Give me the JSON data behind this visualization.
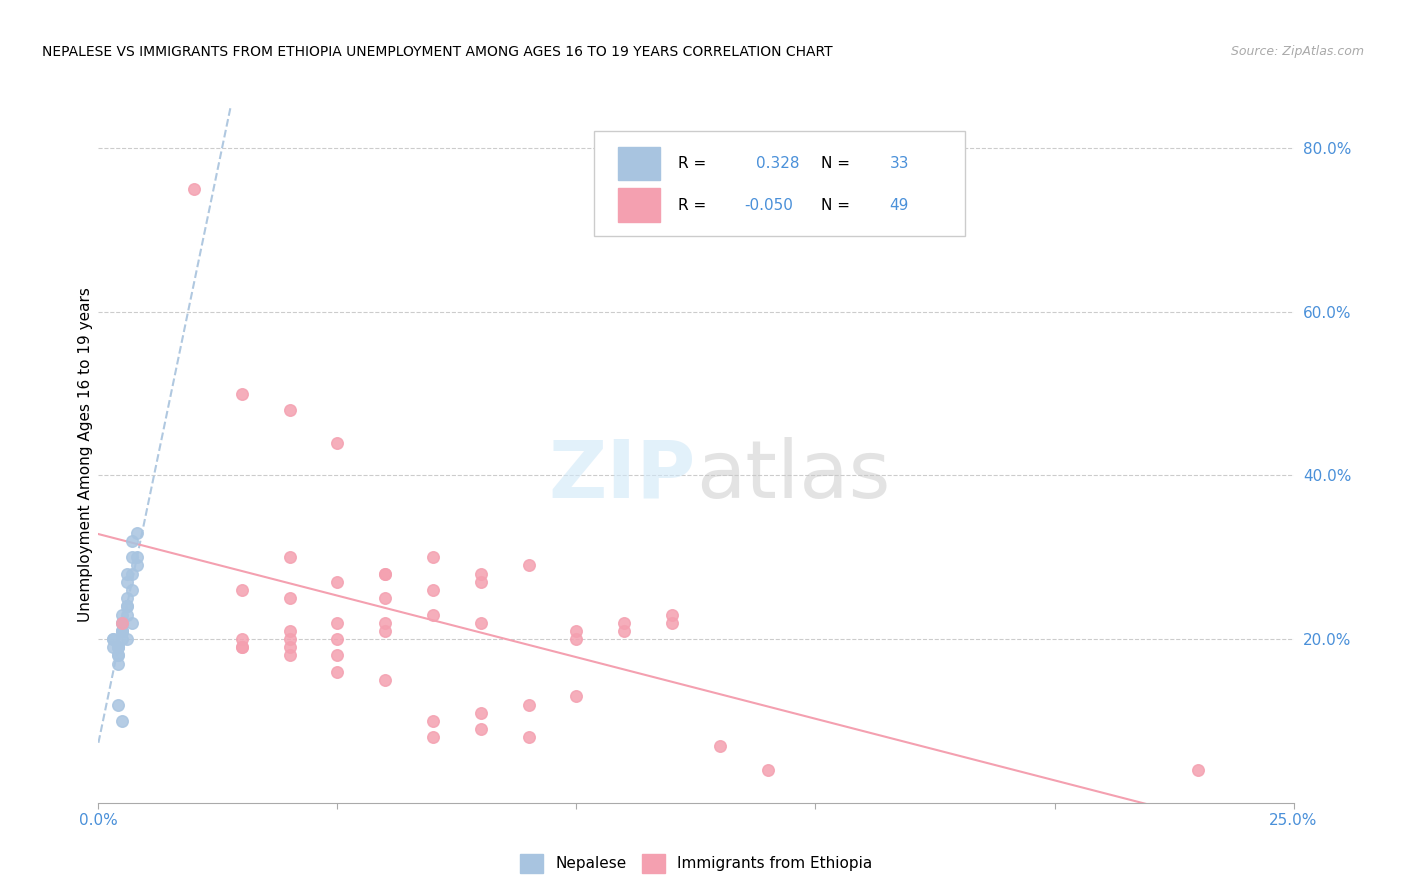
{
  "title": "NEPALESE VS IMMIGRANTS FROM ETHIOPIA UNEMPLOYMENT AMONG AGES 16 TO 19 YEARS CORRELATION CHART",
  "source": "Source: ZipAtlas.com",
  "ylabel": "Unemployment Among Ages 16 to 19 years",
  "xlim": [
    0.0,
    0.25
  ],
  "ylim": [
    0.0,
    0.85
  ],
  "xticks": [
    0.0,
    0.05,
    0.1,
    0.15,
    0.2,
    0.25
  ],
  "xtick_labels": [
    "0.0%",
    "",
    "",
    "",
    "",
    "25.0%"
  ],
  "yticks_right": [
    0.2,
    0.4,
    0.6,
    0.8
  ],
  "ytick_right_labels": [
    "20.0%",
    "40.0%",
    "60.0%",
    "80.0%"
  ],
  "color_nepalese": "#a8c4e0",
  "color_ethiopia": "#f4a0b0",
  "color_blue_text": "#4a90d9",
  "nepalese_x": [
    0.005,
    0.006,
    0.007,
    0.008,
    0.004,
    0.003,
    0.005,
    0.007,
    0.006,
    0.004,
    0.005,
    0.008,
    0.006,
    0.007,
    0.004,
    0.005,
    0.006,
    0.003,
    0.007,
    0.004,
    0.005,
    0.006,
    0.005,
    0.004,
    0.006,
    0.003,
    0.007,
    0.008,
    0.005,
    0.004,
    0.006,
    0.005,
    0.004
  ],
  "nepalese_y": [
    0.22,
    0.25,
    0.28,
    0.3,
    0.19,
    0.2,
    0.21,
    0.32,
    0.27,
    0.18,
    0.23,
    0.29,
    0.2,
    0.22,
    0.19,
    0.21,
    0.24,
    0.2,
    0.26,
    0.19,
    0.22,
    0.28,
    0.2,
    0.18,
    0.24,
    0.19,
    0.3,
    0.33,
    0.21,
    0.17,
    0.23,
    0.1,
    0.12
  ],
  "ethiopia_x": [
    0.005,
    0.02,
    0.03,
    0.04,
    0.05,
    0.06,
    0.07,
    0.08,
    0.09,
    0.1,
    0.11,
    0.12,
    0.03,
    0.04,
    0.05,
    0.06,
    0.04,
    0.05,
    0.03,
    0.04,
    0.05,
    0.06,
    0.07,
    0.08,
    0.04,
    0.03,
    0.05,
    0.06,
    0.04,
    0.03,
    0.05,
    0.06,
    0.07,
    0.08,
    0.09,
    0.1,
    0.11,
    0.12,
    0.13,
    0.14,
    0.07,
    0.08,
    0.09,
    0.1,
    0.06,
    0.07,
    0.08,
    0.23,
    0.04
  ],
  "ethiopia_y": [
    0.22,
    0.75,
    0.5,
    0.48,
    0.44,
    0.28,
    0.3,
    0.28,
    0.29,
    0.21,
    0.22,
    0.23,
    0.26,
    0.3,
    0.27,
    0.28,
    0.25,
    0.22,
    0.2,
    0.19,
    0.18,
    0.22,
    0.23,
    0.22,
    0.21,
    0.19,
    0.2,
    0.21,
    0.18,
    0.19,
    0.16,
    0.15,
    0.08,
    0.09,
    0.08,
    0.2,
    0.21,
    0.22,
    0.07,
    0.04,
    0.1,
    0.11,
    0.12,
    0.13,
    0.25,
    0.26,
    0.27,
    0.04,
    0.2
  ],
  "figsize": [
    14.06,
    8.92
  ],
  "dpi": 100
}
